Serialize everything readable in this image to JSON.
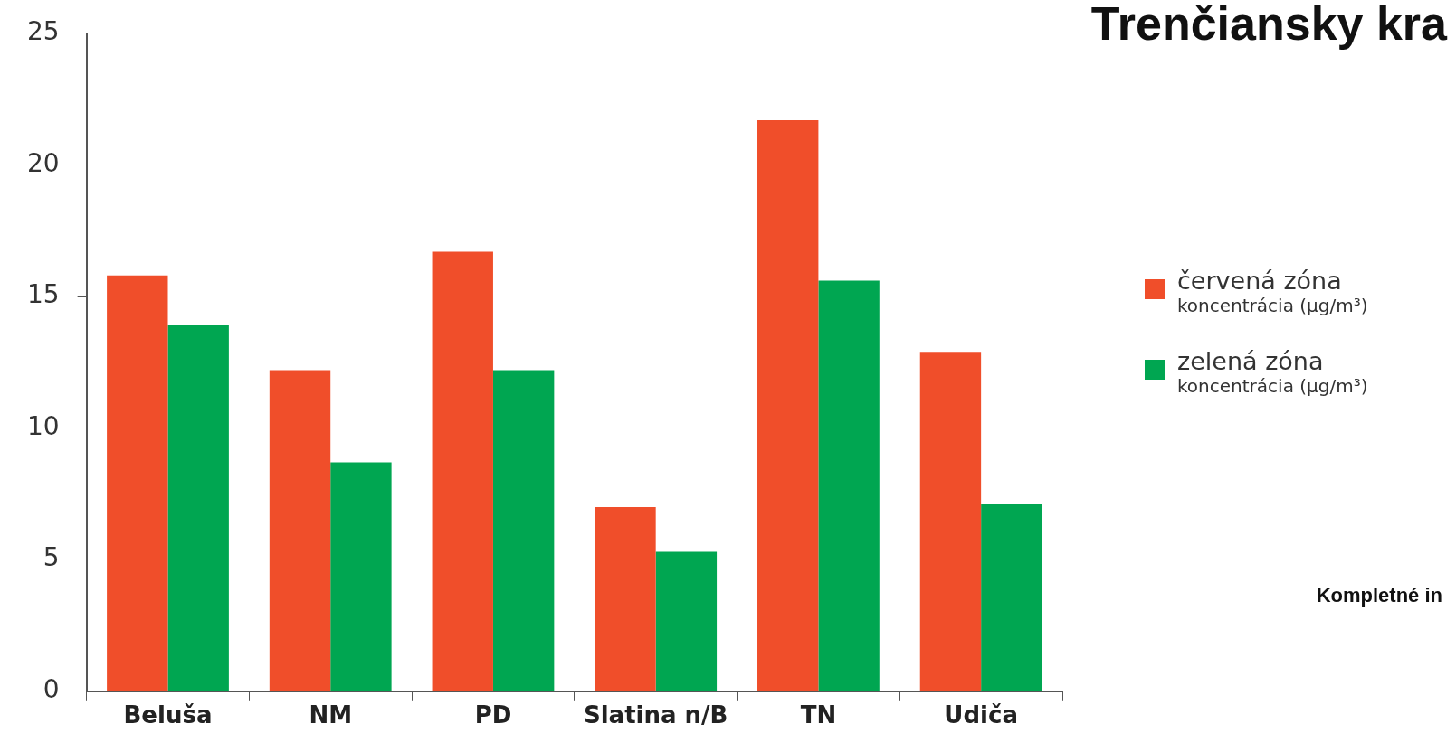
{
  "chart_data": {
    "type": "bar",
    "title": "Trenčiansky kra",
    "categories": [
      "Beluša",
      "NM",
      "PD",
      "Slatina n/B",
      "TN",
      "Udiča"
    ],
    "series": [
      {
        "name": "červená zóna\nkoncentrácia (µg/m³)",
        "color": "#f04e2a",
        "values": [
          15.8,
          12.2,
          16.7,
          7.0,
          21.7,
          12.9
        ]
      },
      {
        "name": "zelená zóna\nkoncentrácia (µg/m³)",
        "color": "#00a651",
        "values": [
          13.9,
          8.7,
          12.2,
          5.3,
          15.6,
          7.1
        ]
      }
    ],
    "ylim": [
      0,
      25
    ],
    "yticks": [
      0,
      5,
      10,
      15,
      20,
      25
    ],
    "grid": false,
    "legend": "right",
    "annotations": [
      "Kompletné in"
    ]
  }
}
